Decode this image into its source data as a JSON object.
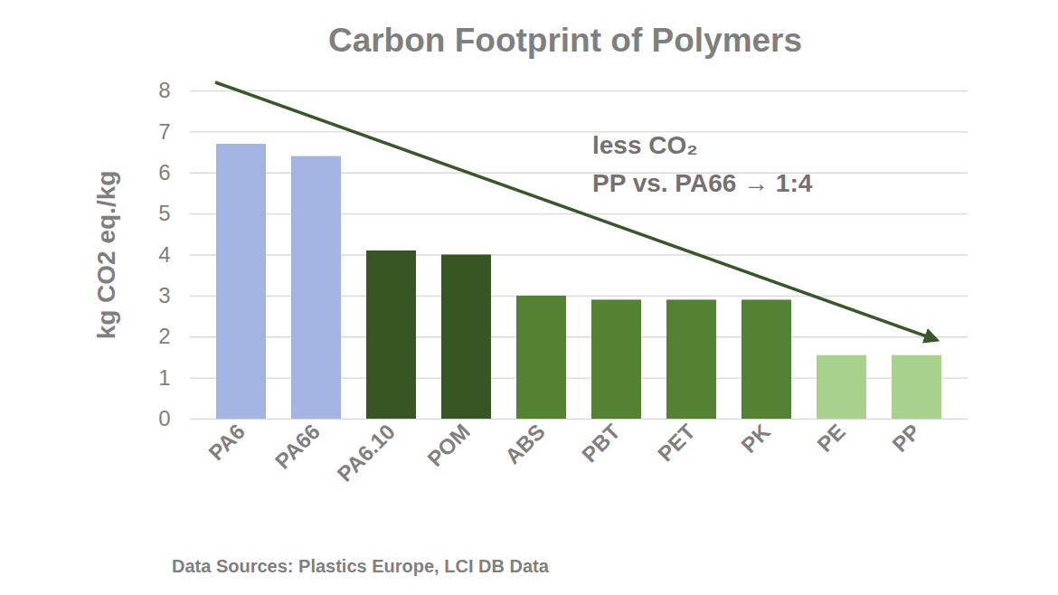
{
  "chart_data": {
    "type": "bar",
    "title": "Carbon Footprint of Polymers",
    "categories": [
      "PA6",
      "PA66",
      "PA6.10",
      "POM",
      "ABS",
      "PBT",
      "PET",
      "PK",
      "PE",
      "PP"
    ],
    "values": [
      6.7,
      6.4,
      4.1,
      4.0,
      3.0,
      2.9,
      2.9,
      2.9,
      1.55,
      1.55
    ],
    "colors": [
      "#a3b4e2",
      "#a3b4e2",
      "#375623",
      "#375623",
      "#548235",
      "#548235",
      "#548235",
      "#548235",
      "#a9d18e",
      "#a9d18e"
    ],
    "y_label": "kg CO2 eq./kg",
    "ylim": [
      0,
      8
    ],
    "yticks": [
      0,
      1,
      2,
      3,
      4,
      5,
      6,
      7,
      8
    ],
    "grid": true,
    "annotations": [
      "less CO₂",
      "PP vs. PA66 → 1:4"
    ],
    "source": "Data Sources: Plastics Europe, LCI DB Data"
  }
}
